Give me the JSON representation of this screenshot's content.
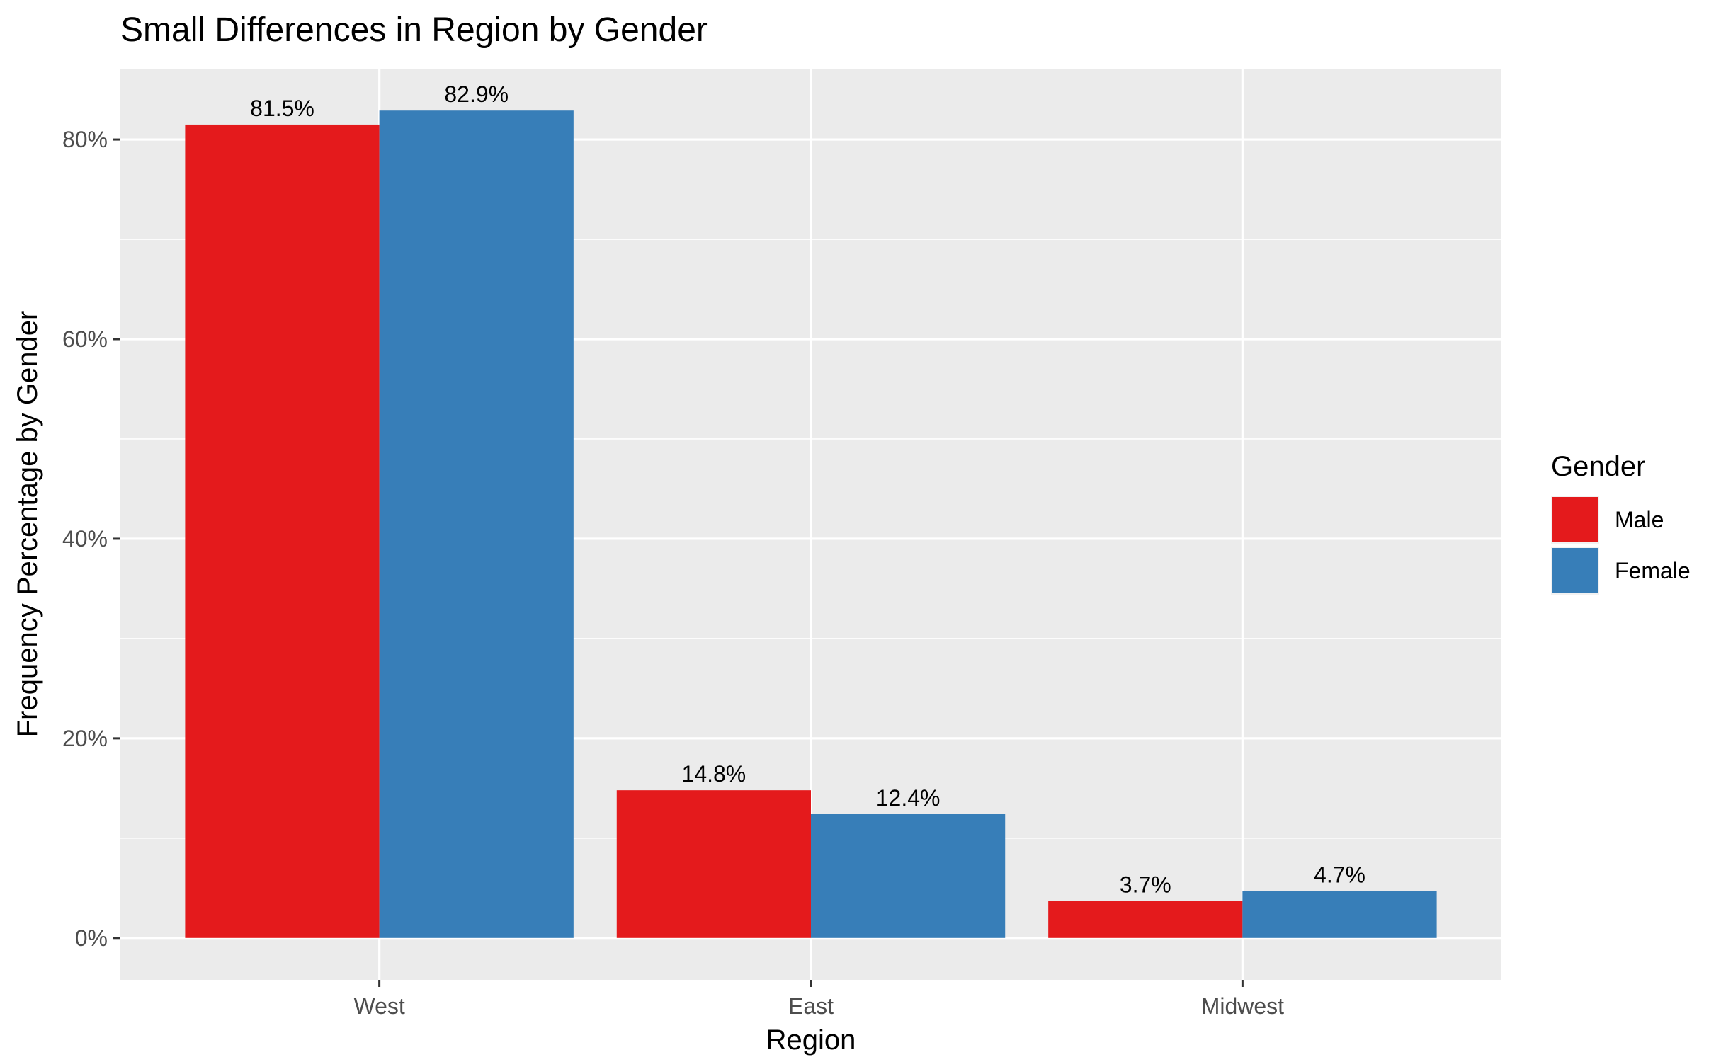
{
  "chart_data": {
    "type": "bar",
    "title": "Small Differences in Region by Gender",
    "xlabel": "Region",
    "ylabel": "Frequency Percentage by Gender",
    "categories": [
      "West",
      "East",
      "Midwest"
    ],
    "series": [
      {
        "name": "Male",
        "color": "#E41A1C",
        "values": [
          81.5,
          14.8,
          3.7
        ],
        "labels": [
          "81.5%",
          "14.8%",
          "3.7%"
        ]
      },
      {
        "name": "Female",
        "color": "#377EB8",
        "values": [
          82.9,
          12.4,
          4.7
        ],
        "labels": [
          "82.9%",
          "12.4%",
          "4.7%"
        ]
      }
    ],
    "ylim": [
      -4.2,
      87.1
    ],
    "yticks": [
      0,
      20,
      40,
      60,
      80
    ],
    "ytick_labels": [
      "0%",
      "20%",
      "40%",
      "60%",
      "80%"
    ],
    "legend": {
      "title": "Gender",
      "position": "right"
    },
    "grid": true,
    "panel_color": "#EBEBEB"
  }
}
